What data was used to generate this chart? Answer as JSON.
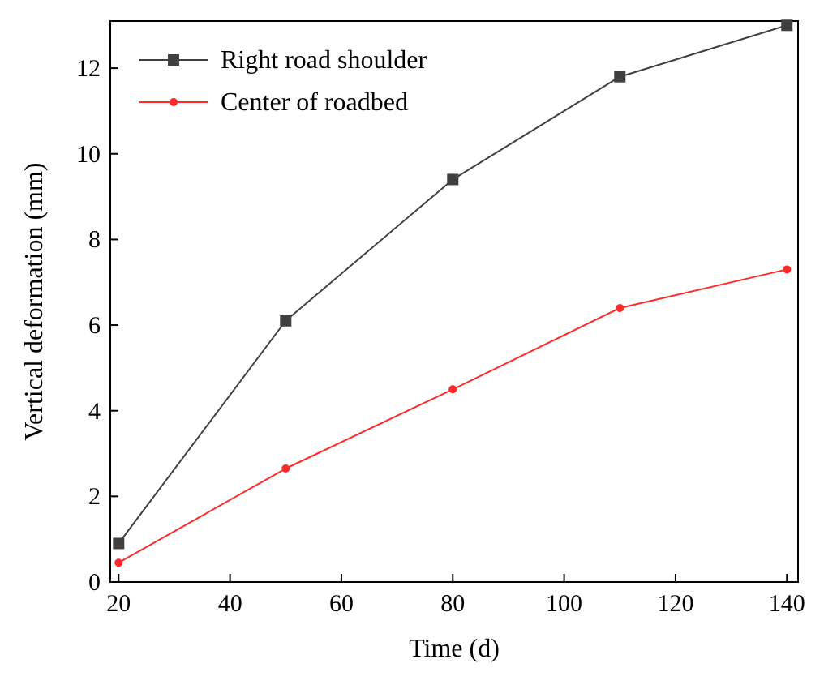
{
  "chart_data": {
    "type": "line",
    "xlabel": "Time (d)",
    "ylabel": "Vertical deformation (mm)",
    "x": [
      20,
      50,
      80,
      110,
      140
    ],
    "series": [
      {
        "name": "Right road shoulder",
        "color": "#404040",
        "values": [
          0.9,
          6.1,
          9.4,
          11.8,
          13.0
        ],
        "marker": "square"
      },
      {
        "name": "Center of roadbed",
        "color": "#ff2a2a",
        "values": [
          0.45,
          2.65,
          4.5,
          6.4,
          7.3
        ],
        "marker": "circle"
      }
    ],
    "xlim": [
      18.5,
      142
    ],
    "xticks": [
      20,
      40,
      60,
      80,
      100,
      120,
      140
    ],
    "ylim": [
      0,
      13.1
    ],
    "yticks": [
      0,
      2,
      4,
      6,
      8,
      10,
      12
    ],
    "grid": false,
    "legend": "top left"
  }
}
